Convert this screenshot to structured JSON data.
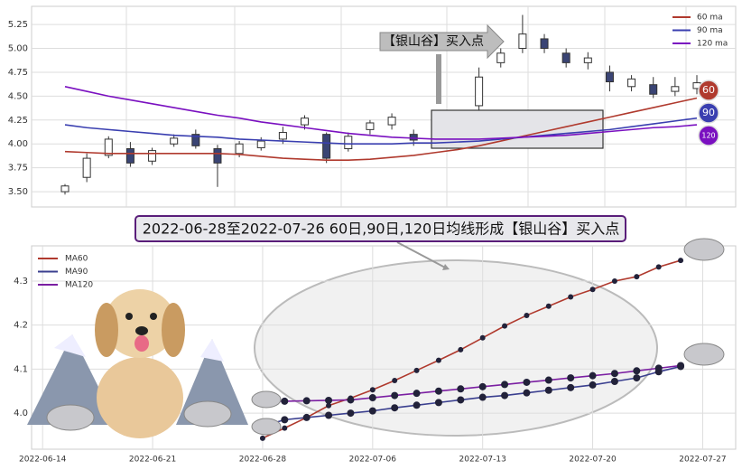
{
  "chart_data": [
    {
      "type": "candlestick",
      "ylim": [
        3.34,
        5.44
      ],
      "yticks": [
        {
          "value": 3.5,
          "label": "3.50"
        },
        {
          "value": 3.75,
          "label": "3.75"
        },
        {
          "value": 4,
          "label": "4.00"
        },
        {
          "value": 4.25,
          "label": "4.25"
        },
        {
          "value": 4.5,
          "label": "4.50"
        },
        {
          "value": 4.75,
          "label": "4.75"
        },
        {
          "value": 5,
          "label": "5.00"
        },
        {
          "value": 5.25,
          "label": "5.25"
        }
      ],
      "open": [
        3.5,
        3.65,
        3.88,
        3.95,
        3.82,
        4.0,
        4.1,
        3.95,
        3.9,
        3.96,
        4.05,
        4.2,
        4.1,
        3.95,
        4.15,
        4.2,
        4.1,
        4.08,
        4.15,
        4.4,
        4.85,
        5.0,
        5.1,
        4.95,
        4.85,
        4.75,
        4.6,
        4.62,
        4.55,
        4.58
      ],
      "high": [
        3.58,
        3.9,
        4.08,
        4.02,
        3.96,
        4.1,
        4.15,
        3.99,
        4.03,
        4.07,
        4.18,
        4.3,
        4.12,
        4.12,
        4.25,
        4.32,
        4.15,
        4.12,
        4.3,
        4.8,
        5.0,
        5.35,
        5.15,
        5.0,
        4.96,
        4.82,
        4.72,
        4.7,
        4.7,
        4.72
      ],
      "low": [
        3.47,
        3.6,
        3.85,
        3.76,
        3.78,
        3.97,
        3.95,
        3.55,
        3.86,
        3.93,
        4.0,
        4.15,
        3.8,
        3.92,
        4.1,
        4.15,
        3.98,
        3.97,
        4.1,
        4.35,
        4.8,
        4.95,
        4.95,
        4.8,
        4.78,
        4.55,
        4.55,
        4.48,
        4.5,
        4.52
      ],
      "close": [
        3.56,
        3.85,
        4.05,
        3.8,
        3.93,
        4.06,
        3.98,
        3.8,
        4.0,
        4.03,
        4.12,
        4.27,
        3.85,
        4.08,
        4.22,
        4.28,
        4.04,
        4.02,
        4.27,
        4.7,
        4.95,
        5.15,
        5.0,
        4.85,
        4.9,
        4.65,
        4.68,
        4.52,
        4.6,
        4.64
      ],
      "series": [
        {
          "name": "60 ma",
          "color": "#b03a2e",
          "values": [
            3.92,
            3.91,
            3.9,
            3.9,
            3.9,
            3.9,
            3.9,
            3.9,
            3.89,
            3.87,
            3.85,
            3.84,
            3.83,
            3.83,
            3.84,
            3.86,
            3.88,
            3.91,
            3.94,
            3.98,
            4.03,
            4.08,
            4.13,
            4.18,
            4.23,
            4.28,
            4.33,
            4.38,
            4.43,
            4.48
          ]
        },
        {
          "name": "90 ma",
          "color": "#3a3fb0",
          "values": [
            4.2,
            4.17,
            4.15,
            4.13,
            4.11,
            4.09,
            4.08,
            4.07,
            4.05,
            4.04,
            4.03,
            4.02,
            4.01,
            4.0,
            4.0,
            4.0,
            4.01,
            4.01,
            4.02,
            4.03,
            4.05,
            4.07,
            4.09,
            4.11,
            4.13,
            4.15,
            4.18,
            4.21,
            4.24,
            4.27
          ]
        },
        {
          "name": "120 ma",
          "color": "#7a10c0",
          "values": [
            4.6,
            4.55,
            4.5,
            4.46,
            4.42,
            4.38,
            4.34,
            4.3,
            4.27,
            4.23,
            4.2,
            4.17,
            4.14,
            4.11,
            4.09,
            4.07,
            4.06,
            4.05,
            4.05,
            4.05,
            4.06,
            4.07,
            4.08,
            4.09,
            4.11,
            4.13,
            4.15,
            4.17,
            4.18,
            4.2
          ]
        }
      ],
      "end_labels": [
        "60",
        "90",
        "120"
      ],
      "annotation": "【银山谷】买入点"
    },
    {
      "type": "line",
      "title": "2022-06-28至2022-07-26 60日,90日,120日均线形成【银山谷】买入点",
      "x": [
        0,
        1,
        2,
        3,
        4,
        5,
        6,
        7,
        8,
        9,
        10,
        11,
        12,
        13,
        14,
        15,
        16,
        17,
        18,
        19
      ],
      "xlim": [
        -10.5,
        21.5
      ],
      "xticks": [
        {
          "value": -10,
          "label": "2022-06-14"
        },
        {
          "value": -5,
          "label": "2022-06-21"
        },
        {
          "value": 0,
          "label": "2022-06-28"
        },
        {
          "value": 5,
          "label": "2022-07-06"
        },
        {
          "value": 10,
          "label": "2022-07-13"
        },
        {
          "value": 15,
          "label": "2022-07-20"
        },
        {
          "value": 20,
          "label": "2022-07-27"
        }
      ],
      "ylim": [
        3.918,
        4.38
      ],
      "yticks": [
        {
          "value": 4,
          "label": "4.0"
        },
        4.1,
        4.2,
        4.3
      ],
      "series": [
        {
          "name": "MA60",
          "color": "#b03a2e",
          "values": [
            3.943,
            3.966,
            3.99,
            4.017,
            4.034,
            4.053,
            4.074,
            4.097,
            4.12,
            4.144,
            4.171,
            4.198,
            4.222,
            4.243,
            4.264,
            4.281,
            4.3,
            4.31,
            4.332,
            4.347
          ]
        },
        {
          "name": "MA90",
          "color": "#3a3f8f",
          "values": [
            3.97,
            3.985,
            3.99,
            3.995,
            4.0,
            4.005,
            4.012,
            4.018,
            4.024,
            4.03,
            4.036,
            4.04,
            4.046,
            4.052,
            4.058,
            4.064,
            4.072,
            4.08,
            4.094,
            4.106
          ]
        },
        {
          "name": "MA120",
          "color": "#7b1fa2",
          "values": [
            4.027,
            4.027,
            4.028,
            4.029,
            4.03,
            4.035,
            4.04,
            4.045,
            4.05,
            4.055,
            4.06,
            4.065,
            4.07,
            4.075,
            4.08,
            4.085,
            4.09,
            4.096,
            4.102,
            4.108
          ]
        }
      ]
    }
  ]
}
